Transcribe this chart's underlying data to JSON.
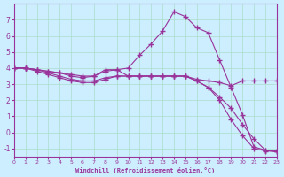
{
  "xlabel": "Windchill (Refroidissement éolien,°C)",
  "background_color": "#cceeff",
  "line_color": "#993399",
  "grid_color": "#aaddcc",
  "xlim": [
    0,
    23
  ],
  "ylim": [
    -1.5,
    8
  ],
  "yticks": [
    -1,
    0,
    1,
    2,
    3,
    4,
    5,
    6,
    7
  ],
  "xticks": [
    0,
    1,
    2,
    3,
    4,
    5,
    6,
    7,
    8,
    9,
    10,
    11,
    12,
    13,
    14,
    15,
    16,
    17,
    18,
    19,
    20,
    21,
    22,
    23
  ],
  "series": [
    {
      "x": [
        0,
        1,
        2,
        3,
        4,
        5,
        6,
        7,
        8,
        9,
        10,
        11,
        12,
        13,
        14,
        15,
        16,
        17,
        18,
        19,
        20,
        21,
        22,
        23
      ],
      "y": [
        4.0,
        4.0,
        3.9,
        3.8,
        3.7,
        3.6,
        3.5,
        3.5,
        3.9,
        3.9,
        3.5,
        3.5,
        3.5,
        3.5,
        3.5,
        3.5,
        3.3,
        3.2,
        3.1,
        2.9,
        3.2,
        3.2,
        3.2,
        3.2
      ]
    },
    {
      "x": [
        0,
        1,
        2,
        3,
        4,
        5,
        6,
        7,
        8,
        9,
        10,
        11,
        12,
        13,
        14,
        15,
        16,
        17,
        18,
        19,
        20,
        21,
        22,
        23
      ],
      "y": [
        4.0,
        4.0,
        3.9,
        3.8,
        3.7,
        3.5,
        3.4,
        3.5,
        3.8,
        3.9,
        4.0,
        4.8,
        5.5,
        6.3,
        7.5,
        7.2,
        6.5,
        6.2,
        4.5,
        2.8,
        1.1,
        -0.9,
        -1.1,
        -1.15
      ]
    },
    {
      "x": [
        0,
        1,
        2,
        3,
        4,
        5,
        6,
        7,
        8,
        9,
        10,
        11,
        12,
        13,
        14,
        15,
        16,
        17,
        18,
        19,
        20,
        21,
        22,
        23
      ],
      "y": [
        4.0,
        4.0,
        3.8,
        3.6,
        3.4,
        3.2,
        3.1,
        3.1,
        3.3,
        3.5,
        3.5,
        3.5,
        3.5,
        3.5,
        3.5,
        3.5,
        3.2,
        2.8,
        2.2,
        1.5,
        0.5,
        -0.4,
        -1.1,
        -1.2
      ]
    },
    {
      "x": [
        0,
        1,
        2,
        3,
        4,
        5,
        6,
        7,
        8,
        9,
        10,
        11,
        12,
        13,
        14,
        15,
        16,
        17,
        18,
        19,
        20,
        21,
        22,
        23
      ],
      "y": [
        4.0,
        4.0,
        3.9,
        3.7,
        3.5,
        3.3,
        3.2,
        3.2,
        3.4,
        3.5,
        3.5,
        3.5,
        3.5,
        3.5,
        3.5,
        3.5,
        3.2,
        2.8,
        2.0,
        0.8,
        -0.2,
        -1.0,
        -1.15,
        -1.2
      ]
    }
  ]
}
